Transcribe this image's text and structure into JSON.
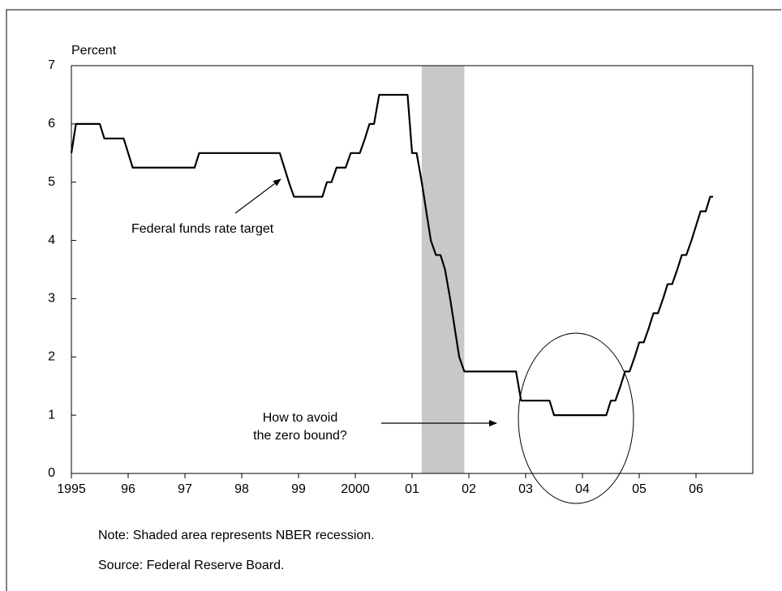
{
  "chart_data": {
    "type": "line",
    "y_label": "Percent",
    "annotations": [
      "Federal funds rate target",
      "How to avoid",
      "the zero bound?"
    ],
    "notes": [
      "Note: Shaded area represents NBER recession.",
      "Source: Federal Reserve Board."
    ],
    "color": "#000000",
    "recession": [
      2001.17,
      2001.92
    ],
    "recession_color": "#c8c8c8",
    "x": [
      1995.0,
      1995.08,
      1995.5,
      1995.58,
      1995.92,
      1996.08,
      1997.17,
      1997.25,
      1998.67,
      1998.75,
      1998.83,
      1998.92,
      1999.42,
      1999.5,
      1999.58,
      1999.67,
      1999.83,
      1999.92,
      2000.08,
      2000.17,
      2000.25,
      2000.33,
      2000.42,
      2000.92,
      2001.0,
      2001.08,
      2001.17,
      2001.25,
      2001.33,
      2001.42,
      2001.5,
      2001.58,
      2001.67,
      2001.75,
      2001.83,
      2001.92,
      2002.83,
      2002.92,
      2003.42,
      2003.5,
      2004.42,
      2004.5,
      2004.58,
      2004.67,
      2004.75,
      2004.83,
      2004.92,
      2005.0,
      2005.08,
      2005.17,
      2005.25,
      2005.33,
      2005.42,
      2005.5,
      2005.58,
      2005.67,
      2005.75,
      2005.83,
      2005.92,
      2006.0,
      2006.08,
      2006.17,
      2006.25,
      2006.3
    ],
    "values": [
      5.5,
      6.0,
      6.0,
      5.75,
      5.75,
      5.25,
      5.25,
      5.5,
      5.5,
      5.25,
      5.0,
      4.75,
      4.75,
      5.0,
      5.0,
      5.25,
      5.25,
      5.5,
      5.5,
      5.75,
      6.0,
      6.0,
      6.5,
      6.5,
      5.5,
      5.5,
      5.0,
      4.5,
      4.0,
      3.75,
      3.75,
      3.5,
      3.0,
      2.5,
      2.0,
      1.75,
      1.75,
      1.25,
      1.25,
      1.0,
      1.0,
      1.25,
      1.25,
      1.5,
      1.75,
      1.75,
      2.0,
      2.25,
      2.25,
      2.5,
      2.75,
      2.75,
      3.0,
      3.25,
      3.25,
      3.5,
      3.75,
      3.75,
      4.0,
      4.25,
      4.5,
      4.5,
      4.75,
      4.75
    ],
    "xlim": [
      1995,
      2007
    ],
    "xticks": [
      1995,
      {
        "value": 1996,
        "label": "96"
      },
      {
        "value": 1997,
        "label": "97"
      },
      {
        "value": 1998,
        "label": "98"
      },
      {
        "value": 1999,
        "label": "99"
      },
      2000,
      {
        "value": 2001,
        "label": "01"
      },
      {
        "value": 2002,
        "label": "02"
      },
      {
        "value": 2003,
        "label": "03"
      },
      {
        "value": 2004,
        "label": "04"
      },
      {
        "value": 2005,
        "label": "05"
      },
      {
        "value": 2006,
        "label": "06"
      }
    ],
    "ylim": [
      0,
      7
    ],
    "yticks": [
      0,
      1,
      2,
      3,
      4,
      5,
      6,
      7
    ],
    "grid": false
  }
}
